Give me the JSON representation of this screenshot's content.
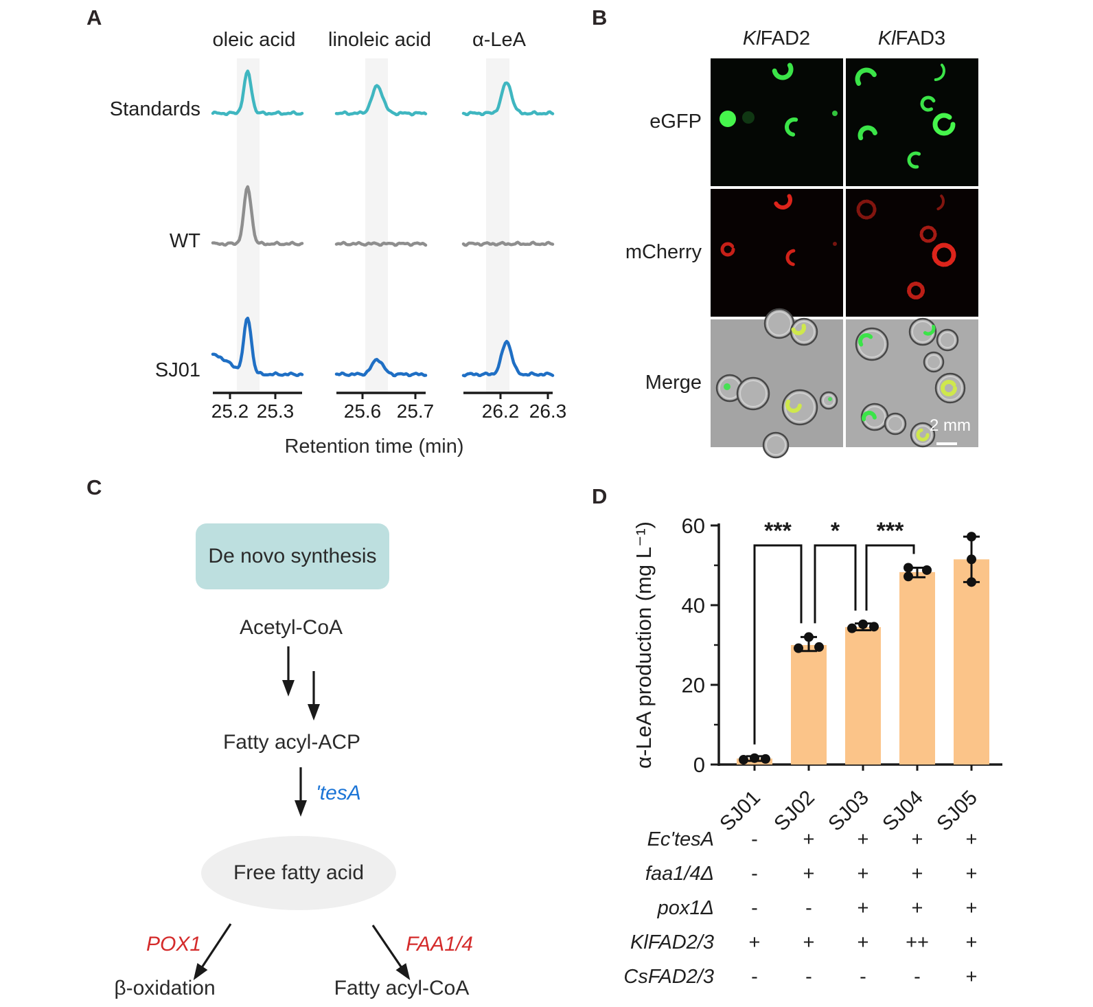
{
  "figure": {
    "panel_labels": {
      "a": "A",
      "b": "B",
      "c": "C",
      "d": "D"
    },
    "background": "#ffffff"
  },
  "chart_data": [
    {
      "panel": "A",
      "type": "line",
      "description": "GC chromatogram traces of fatty acid methyl esters",
      "rows": [
        "Standards",
        "WT",
        "SJ01"
      ],
      "row_colors": [
        "#3FB6C0",
        "#8E8E8E",
        "#1F6FC4"
      ],
      "xlabel": "Retention time (min)",
      "columns": [
        {
          "analyte": "oleic acid",
          "tick_labels": [
            "25.2",
            "25.3"
          ],
          "peak_heights": [
            60,
            82,
            80
          ],
          "start_rise": [
            0,
            0,
            28
          ]
        },
        {
          "analyte": "linoleic acid",
          "tick_labels": [
            "25.6",
            "25.7"
          ],
          "peak_heights": [
            40,
            0,
            22
          ],
          "start_rise": [
            0,
            0,
            0
          ]
        },
        {
          "analyte": "α-LeA",
          "tick_labels": [
            "26.2",
            "26.3"
          ],
          "peak_heights": [
            45,
            0,
            48
          ],
          "start_rise": [
            0,
            0,
            0
          ]
        }
      ]
    },
    {
      "panel": "D",
      "type": "bar",
      "categories": [
        "SJ01",
        "SJ02",
        "SJ03",
        "SJ04",
        "SJ05"
      ],
      "values": [
        1.5,
        30,
        34.5,
        48.3,
        51.5
      ],
      "error_low": [
        0.6,
        1.5,
        0.8,
        1.3,
        5.7
      ],
      "error_high": [
        0.6,
        2.0,
        0.9,
        1.1,
        5.7
      ],
      "points": [
        [
          1.2,
          1.6,
          1.4
        ],
        [
          29.2,
          29.5,
          32
        ],
        [
          34.2,
          35.2,
          34.6
        ],
        [
          49.4,
          47.2,
          48.8
        ],
        [
          45.8,
          51.5,
          57.2
        ]
      ],
      "point_dx": [
        [
          -16,
          0,
          16
        ],
        [
          -15,
          15,
          0
        ],
        [
          -16,
          0,
          16
        ],
        [
          -13,
          -13,
          14
        ],
        [
          0,
          0,
          0
        ]
      ],
      "ylabel": "α-LeA production (mg L⁻¹)",
      "ylim": [
        0,
        60
      ],
      "yticks": [
        0,
        20,
        40,
        60
      ],
      "yticks_minor": [
        10,
        30,
        50
      ],
      "bar_color": "#FBC489",
      "significance": [
        {
          "pair": [
            0,
            1
          ],
          "label": "***"
        },
        {
          "pair": [
            1,
            2
          ],
          "label": "*"
        },
        {
          "pair": [
            2,
            3
          ],
          "label": "***"
        }
      ]
    }
  ],
  "panelB": {
    "columns": [
      {
        "prefix": "Kl",
        "name": "FAD2"
      },
      {
        "prefix": "Kl",
        "name": "FAD3"
      }
    ],
    "rows": [
      "eGFP",
      "mCherry",
      "Merge"
    ],
    "scale_bar_label": "2 mm"
  },
  "panelC": {
    "box_label": "De novo synthesis",
    "metabolites": {
      "acetyl": "Acetyl-CoA",
      "acp": "Fatty acyl-ACP",
      "ffa": "Free fatty acid",
      "beta": "β-oxidation",
      "acylcoa": "Fatty acyl-CoA"
    },
    "enzymes": {
      "tesA": "'tesA",
      "pox1": "POX1",
      "faa": "FAA1/4"
    },
    "colors": {
      "box_bg": "#BDDFDF",
      "ffa_bg": "#EFEFEF",
      "tesA_blue": "#1B74D6",
      "enzyme_red": "#D42B2B"
    }
  },
  "panelD": {
    "genotype": {
      "rows": [
        {
          "gene": "Ec'tesA",
          "values": [
            "-",
            "+",
            "+",
            "+",
            "+"
          ]
        },
        {
          "gene": "faa1/4Δ",
          "values": [
            "-",
            "+",
            "+",
            "+",
            "+"
          ]
        },
        {
          "gene": "pox1Δ",
          "values": [
            "-",
            "-",
            "+",
            "+",
            "+"
          ]
        },
        {
          "gene": "KlFAD2/3",
          "values": [
            "+",
            "+",
            "+",
            "++",
            "+"
          ]
        },
        {
          "gene": "CsFAD2/3",
          "values": [
            "-",
            "-",
            "-",
            "-",
            "+"
          ]
        }
      ]
    }
  }
}
